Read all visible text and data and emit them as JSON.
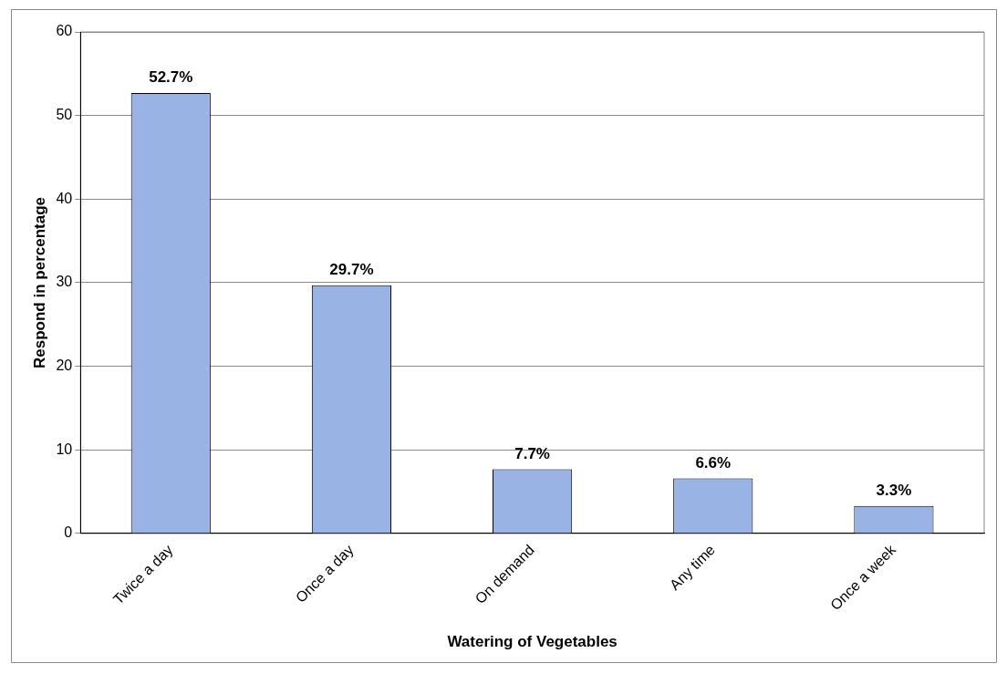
{
  "chart_data": {
    "type": "bar",
    "xlabel": "Watering of Vegetables",
    "ylabel": "Respond in percentage",
    "categories": [
      "Twice a day",
      "Once a day",
      "On demand",
      "Any time",
      "Once a week"
    ],
    "values": [
      52.7,
      29.7,
      7.7,
      6.6,
      3.3
    ],
    "value_labels": [
      "52.7%",
      "29.7%",
      "7.7%",
      "6.6%",
      "3.3%"
    ],
    "color": "#99b4e4",
    "ylim": [
      0,
      60
    ],
    "yticks": [
      0,
      10,
      20,
      30,
      40,
      50,
      60
    ],
    "grid": "y",
    "legend": false
  }
}
